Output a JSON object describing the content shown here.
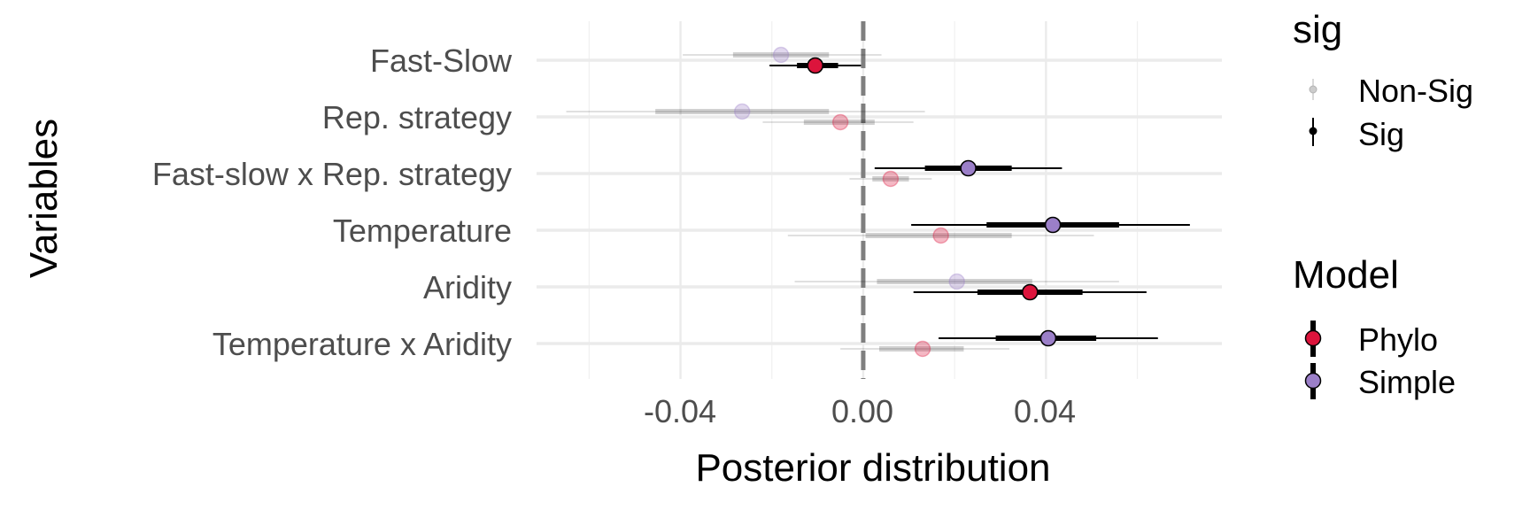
{
  "chart_data": {
    "type": "forest",
    "xlabel": "Posterior distribution",
    "ylabel": "Variables",
    "xlim": [
      -0.0715,
      0.0785
    ],
    "x_ticks": [
      -0.04,
      0.0,
      0.04
    ],
    "x_tick_labels": [
      "-0.04",
      "0.00",
      "0.04"
    ],
    "x_minor_ticks": [
      -0.06,
      -0.02,
      0.02,
      0.06
    ],
    "grid": true,
    "reference_line": 0,
    "categories": [
      "Fast-Slow",
      "Rep. strategy",
      "Fast-slow x Rep. strategy",
      "Temperature",
      "Aridity",
      "Temperature x Aridity"
    ],
    "series": [
      {
        "name": "Phylo",
        "color": "#DC143C",
        "points": [
          {
            "variable": "Fast-Slow",
            "estimate": -0.0105,
            "inner": [
              -0.0145,
              -0.0055
            ],
            "outer": [
              -0.0205,
              -0.0005
            ],
            "sig": "Sig"
          },
          {
            "variable": "Rep. strategy",
            "estimate": -0.005,
            "inner": [
              -0.013,
              0.0025
            ],
            "outer": [
              -0.022,
              0.011
            ],
            "sig": "Non-Sig"
          },
          {
            "variable": "Fast-slow x Rep. strategy",
            "estimate": 0.006,
            "inner": [
              0.002,
              0.01
            ],
            "outer": [
              -0.003,
              0.015
            ],
            "sig": "Non-Sig"
          },
          {
            "variable": "Temperature",
            "estimate": 0.017,
            "inner": [
              0.0005,
              0.0325
            ],
            "outer": [
              -0.0165,
              0.0505
            ],
            "sig": "Non-Sig"
          },
          {
            "variable": "Aridity",
            "estimate": 0.0365,
            "inner": [
              0.025,
              0.048
            ],
            "outer": [
              0.011,
              0.062
            ],
            "sig": "Sig"
          },
          {
            "variable": "Temperature x Aridity",
            "estimate": 0.013,
            "inner": [
              0.0035,
              0.022
            ],
            "outer": [
              -0.005,
              0.032
            ],
            "sig": "Non-Sig"
          }
        ]
      },
      {
        "name": "Simple",
        "color": "#9B7FC8",
        "points": [
          {
            "variable": "Fast-Slow",
            "estimate": -0.018,
            "inner": [
              -0.0285,
              -0.0075
            ],
            "outer": [
              -0.0395,
              0.004
            ],
            "sig": "Non-Sig"
          },
          {
            "variable": "Rep. strategy",
            "estimate": -0.0265,
            "inner": [
              -0.0455,
              -0.0075
            ],
            "outer": [
              -0.065,
              0.0135
            ],
            "sig": "Non-Sig"
          },
          {
            "variable": "Fast-slow x Rep. strategy",
            "estimate": 0.023,
            "inner": [
              0.0135,
              0.0325
            ],
            "outer": [
              0.0025,
              0.0435
            ],
            "sig": "Sig"
          },
          {
            "variable": "Temperature",
            "estimate": 0.0415,
            "inner": [
              0.027,
              0.056
            ],
            "outer": [
              0.0105,
              0.0715
            ],
            "sig": "Sig"
          },
          {
            "variable": "Aridity",
            "estimate": 0.0205,
            "inner": [
              0.003,
              0.037
            ],
            "outer": [
              -0.015,
              0.056
            ],
            "sig": "Non-Sig"
          },
          {
            "variable": "Temperature x Aridity",
            "estimate": 0.0405,
            "inner": [
              0.029,
              0.051
            ],
            "outer": [
              0.0165,
              0.0645
            ],
            "sig": "Sig"
          }
        ]
      }
    ],
    "legends": [
      {
        "title": "sig",
        "entries": [
          "Non-Sig",
          "Sig"
        ]
      },
      {
        "title": "Model",
        "entries": [
          "Phylo",
          "Simple"
        ]
      }
    ],
    "legend_position": "right"
  }
}
